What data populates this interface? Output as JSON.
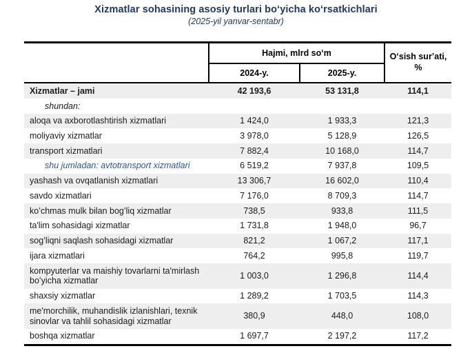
{
  "title": "Xizmatlar sohasining asosiy turlari boʻyicha koʻrsatkichlari",
  "subtitle": "(2025-yil yanvar-sentabr)",
  "colors": {
    "title_navy": "#1f3864",
    "highlight_blue": "#2a55a3",
    "row_alt_bg": "#eeeeee",
    "border_black": "#000000"
  },
  "table": {
    "group_header": "Hajmi, mlrd soʻm",
    "col_2024": "2024-y.",
    "col_2025": "2025-y.",
    "col_growth": "Oʻsish surʼati, %",
    "rows": [
      {
        "label": "Xizmatlar – jami",
        "v2024": "42 193,6",
        "v2025": "53 131,8",
        "growth": "114,1"
      },
      {
        "label": "shundan:",
        "v2024": "",
        "v2025": "",
        "growth": ""
      },
      {
        "label": "aloqa va axborotlashtirish xizmatlari",
        "v2024": "1 424,0",
        "v2025": "1 933,3",
        "growth": "121,3"
      },
      {
        "label": "moliyaviy xizmatlar",
        "v2024": "3 978,0",
        "v2025": "5 128,9",
        "growth": "126,5"
      },
      {
        "label": "transport xizmatlari",
        "v2024": "7 882,4",
        "v2025": "10 168,0",
        "growth": "114,7"
      },
      {
        "label": "shu jumladan: avtotransport xizmatlari",
        "v2024": "6 519,2",
        "v2025": "7 937,8",
        "growth": "109,5"
      },
      {
        "label": "yashash va ovqatlanish xizmatlari",
        "v2024": "13 306,7",
        "v2025": "16 602,0",
        "growth": "110,4"
      },
      {
        "label": "savdo xizmatlari",
        "v2024": "7 176,0",
        "v2025": "8 709,3",
        "growth": "114,7"
      },
      {
        "label": "koʻchmas mulk bilan bogʻliq xizmatlar",
        "v2024": "738,5",
        "v2025": "933,8",
        "growth": "111,5"
      },
      {
        "label": "ta'lim sohasidagi xizmatlar",
        "v2024": "1 731,8",
        "v2025": "1 948,0",
        "growth": "96,7"
      },
      {
        "label": "sogʻliqni saqlash sohasidagi xizmatlar",
        "v2024": "821,2",
        "v2025": "1 067,2",
        "growth": "117,1"
      },
      {
        "label": "ijara xizmatlari",
        "v2024": "764,2",
        "v2025": "995,8",
        "growth": "119,7"
      },
      {
        "label": "kompyuterlar va maishiy tovarlarni ta'mirlash boʻyicha xizmatlar",
        "v2024": "1 003,0",
        "v2025": "1 296,8",
        "growth": "114,4"
      },
      {
        "label": "shaxsiy xizmatlar",
        "v2024": "1 289,2",
        "v2025": "1 703,5",
        "growth": "114,3"
      },
      {
        "label": "me'morchilik, muhandislik izlanishlari, texnik sinovlar va tahlil sohasidagi xizmatlar",
        "v2024": "380,9",
        "v2025": "448,0",
        "growth": "108,0"
      },
      {
        "label": "boshqa xizmatlar",
        "v2024": "1 697,7",
        "v2025": "2 197,2",
        "growth": "117,2"
      }
    ]
  }
}
